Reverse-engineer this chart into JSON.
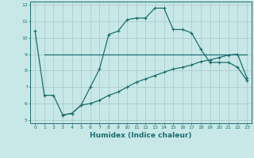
{
  "xlabel": "Humidex (Indice chaleur)",
  "background_color": "#c8e8e8",
  "grid_color": "#a8c8c8",
  "line_color": "#1a6e6e",
  "xlim": [
    -0.5,
    23.5
  ],
  "ylim": [
    4.8,
    12.2
  ],
  "yticks": [
    5,
    6,
    7,
    8,
    9,
    10,
    11,
    12
  ],
  "xticks": [
    0,
    1,
    2,
    3,
    4,
    5,
    6,
    7,
    8,
    9,
    10,
    11,
    12,
    13,
    14,
    15,
    16,
    17,
    18,
    19,
    20,
    21,
    22,
    23
  ],
  "line1_x": [
    1,
    2,
    3,
    4,
    5,
    6,
    7,
    8,
    9,
    10,
    11,
    12,
    13,
    14,
    15,
    16,
    17,
    18,
    19,
    20,
    21,
    22,
    23
  ],
  "line1_y": [
    9.0,
    9.0,
    9.0,
    9.0,
    9.0,
    9.0,
    9.0,
    9.0,
    9.0,
    9.0,
    9.0,
    9.0,
    9.0,
    9.0,
    9.0,
    9.0,
    9.0,
    9.0,
    9.0,
    9.0,
    9.0,
    9.0,
    9.0
  ],
  "line2_x": [
    0,
    1,
    2,
    3,
    4,
    5,
    6,
    7,
    8,
    9,
    10,
    11,
    12,
    13,
    14,
    15,
    16,
    17,
    18,
    19,
    20,
    21,
    22,
    23
  ],
  "line2_y": [
    10.4,
    6.5,
    6.5,
    5.3,
    5.4,
    5.9,
    7.0,
    8.1,
    10.2,
    10.4,
    11.1,
    11.2,
    11.2,
    11.8,
    11.8,
    10.5,
    10.5,
    10.3,
    9.3,
    8.5,
    8.5,
    8.5,
    8.2,
    7.4
  ],
  "line3_x": [
    3,
    4,
    5,
    6,
    7,
    8,
    9,
    10,
    11,
    12,
    13,
    14,
    15,
    16,
    17,
    18,
    19,
    20,
    21,
    22,
    23
  ],
  "line3_y": [
    5.3,
    5.4,
    5.9,
    6.0,
    6.2,
    6.5,
    6.7,
    7.0,
    7.3,
    7.5,
    7.7,
    7.9,
    8.1,
    8.2,
    8.35,
    8.55,
    8.65,
    8.8,
    8.95,
    9.0,
    7.55
  ],
  "tick_fontsize": 4.5,
  "xlabel_fontsize": 6.5
}
